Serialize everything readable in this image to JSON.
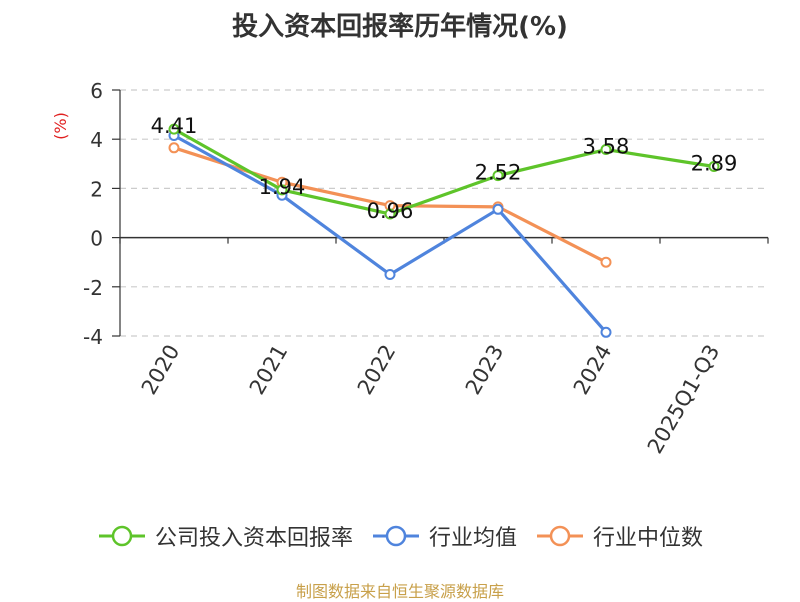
{
  "chart_data": {
    "type": "line",
    "title": "投入资本回报率历年情况(%)",
    "ylabel": "(%)",
    "ylim": [
      -4,
      6
    ],
    "yticks": [
      6,
      4,
      2,
      0,
      -2,
      -4
    ],
    "grid": true,
    "legend_position": "bottom",
    "categories": [
      "2020",
      "2021",
      "2022",
      "2023",
      "2024",
      "2025Q1-Q3"
    ],
    "series": [
      {
        "name": "公司投入资本回报率",
        "color": "#5ec42a",
        "values": [
          4.41,
          1.94,
          0.96,
          2.52,
          3.58,
          2.89
        ],
        "labels": [
          "4.41",
          "1.94",
          "0.96",
          "2.52",
          "3.58",
          "2.89"
        ]
      },
      {
        "name": "行业均值",
        "color": "#4f84dd",
        "values": [
          4.15,
          1.72,
          -1.5,
          1.15,
          -3.85,
          null
        ]
      },
      {
        "name": "行业中位数",
        "color": "#f39156",
        "values": [
          3.65,
          2.25,
          1.3,
          1.25,
          -1.0,
          null
        ]
      }
    ]
  },
  "footer": {
    "source": "制图数据来自恒生聚源数据库"
  }
}
